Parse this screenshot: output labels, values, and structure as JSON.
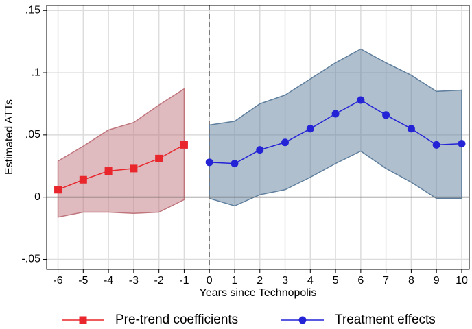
{
  "chart_data": {
    "type": "line",
    "x_label": "Years since Technopolis",
    "y_label": "Estimated ATTs",
    "xlim": [
      -6.45,
      10.3
    ],
    "ylim": [
      -0.058,
      0.154
    ],
    "xticks": [
      -6,
      -5,
      -4,
      -3,
      -2,
      -1,
      0,
      1,
      2,
      3,
      4,
      5,
      6,
      7,
      8,
      9,
      10
    ],
    "yticks": [
      {
        "value": -0.05,
        "label": "-.05"
      },
      0,
      {
        "value": 0.05,
        "label": ".05"
      },
      {
        "value": 0.1,
        "label": ".1"
      },
      {
        "value": 0.15,
        "label": ".15"
      }
    ],
    "grid": true,
    "vline_x": 0,
    "hline_y": 0,
    "series": [
      {
        "name": "Pre-trend coefficients",
        "color": "#e8262b",
        "band_color": "#c0757d",
        "marker": "square",
        "x": [
          -6,
          -5,
          -4,
          -3,
          -2,
          -1
        ],
        "values": [
          0.006,
          0.014,
          0.021,
          0.023,
          0.031,
          0.042
        ],
        "lower": [
          -0.016,
          -0.012,
          -0.012,
          -0.013,
          -0.012,
          -0.002
        ],
        "upper": [
          0.029,
          0.041,
          0.054,
          0.06,
          0.074,
          0.087
        ]
      },
      {
        "name": "Treatment effects",
        "color": "#2424d6",
        "band_color": "#5f7f9e",
        "marker": "circle",
        "x": [
          0,
          1,
          2,
          3,
          4,
          5,
          6,
          7,
          8,
          9,
          10
        ],
        "values": [
          0.028,
          0.027,
          0.038,
          0.044,
          0.055,
          0.067,
          0.078,
          0.066,
          0.055,
          0.042,
          0.043
        ],
        "lower": [
          -0.001,
          -0.007,
          0.002,
          0.006,
          0.016,
          0.027,
          0.037,
          0.023,
          0.012,
          -0.001,
          -0.001
        ],
        "upper": [
          0.058,
          0.061,
          0.075,
          0.082,
          0.095,
          0.108,
          0.119,
          0.108,
          0.098,
          0.085,
          0.086
        ]
      }
    ]
  }
}
